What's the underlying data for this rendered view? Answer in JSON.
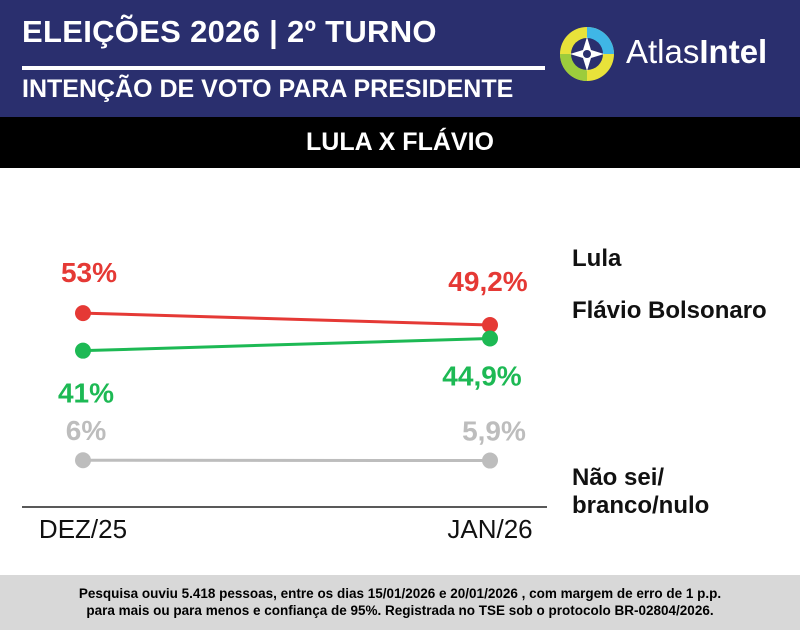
{
  "header": {
    "title": "ELEIÇÕES 2026 | 2º TURNO",
    "subtitle": "INTENÇÃO DE VOTO PARA PRESIDENTE",
    "brand_part1": "Atlas",
    "brand_part2": "Intel",
    "background_color": "#2a2f6e"
  },
  "matchup": "LULA X FLÁVIO",
  "chart_data": {
    "type": "line",
    "x": [
      "DEZ/25",
      "JAN/26"
    ],
    "series": [
      {
        "name": "Lula",
        "values": [
          53,
          49.2
        ],
        "labels": [
          "53%",
          "49,2%"
        ],
        "color": "#e53935"
      },
      {
        "name": "Flávio Bolsonaro",
        "values": [
          41,
          44.9
        ],
        "labels": [
          "41%",
          "44,9%"
        ],
        "color": "#1db954"
      },
      {
        "name": "Não sei/ branco/nulo",
        "name_lines": [
          "Não sei/",
          "branco/nulo"
        ],
        "values": [
          6,
          5.9
        ],
        "labels": [
          "6%",
          "5,9%"
        ],
        "color": "#bdbdbd"
      }
    ],
    "grid": false,
    "legend": "right"
  },
  "footer": {
    "line1": "Pesquisa ouviu 5.418 pessoas, entre os dias 15/01/2026 e 20/01/2026 , com margem de erro de 1 p.p.",
    "line2": "para mais ou para menos e confiança de 95%. Registrada no TSE sob o protocolo BR-02804/2026."
  }
}
